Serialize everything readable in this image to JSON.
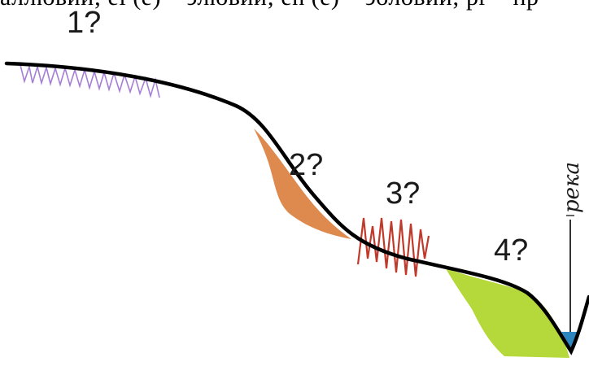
{
  "header_text": "аллювий; el (e) – элювий; eh (e) – эоловий; pr – пр",
  "labels": {
    "zone1": "1?",
    "zone2": "2?",
    "zone3": "3?",
    "zone4": "4?",
    "river": "река"
  },
  "colors": {
    "profile": "#000000",
    "zone1_hatch": "#a57fd6",
    "zone2_fill": "#de8a4f",
    "zone3_hatch": "#c0392b",
    "zone4_fill": "#b5d83a",
    "water": "#2e86c1"
  }
}
